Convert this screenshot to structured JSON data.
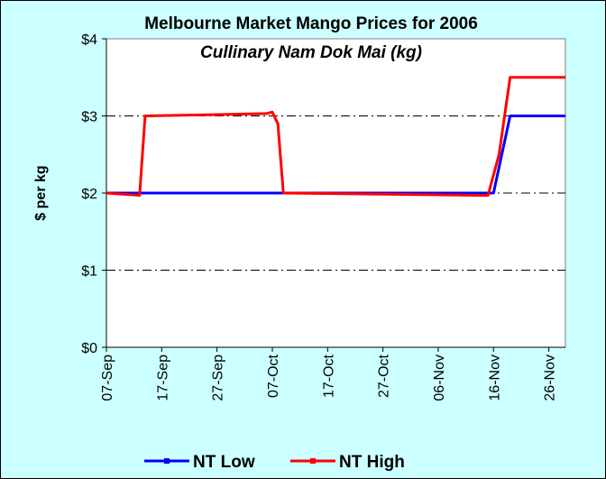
{
  "chart_data": {
    "type": "line",
    "title": "Melbourne Market Mango Prices for 2006",
    "subtitle": "Cullinary Nam Dok Mai (kg)",
    "y_label": "$ per kg",
    "xlim": [
      "07-Sep",
      "29-Nov"
    ],
    "xticks": [
      "07-Sep",
      "17-Sep",
      "27-Sep",
      "07-Oct",
      "17-Oct",
      "27-Oct",
      "06-Nov",
      "16-Nov",
      "26-Nov"
    ],
    "ylim": [
      0,
      4
    ],
    "yticks": [
      {
        "value": 0,
        "label": "$0"
      },
      {
        "value": 1,
        "label": "$1"
      },
      {
        "value": 2,
        "label": "$2"
      },
      {
        "value": 3,
        "label": "$3"
      },
      {
        "value": 4,
        "label": "$4"
      }
    ],
    "grid": true,
    "legend": "bottom",
    "series": [
      {
        "name": "NT Low",
        "color": "#0000ff",
        "x": [
          "07-Sep",
          "16-Nov",
          "19-Nov",
          "29-Nov"
        ],
        "values": [
          2,
          2,
          3,
          3
        ]
      },
      {
        "name": "NT High",
        "color": "#ff0000",
        "x": [
          "07-Sep",
          "13-Sep",
          "14-Sep",
          "06-Oct",
          "07-Oct",
          "08-Oct",
          "09-Oct",
          "15-Nov",
          "17-Nov",
          "19-Nov",
          "29-Nov"
        ],
        "values": [
          2,
          1.97,
          3,
          3.03,
          3.05,
          2.9,
          2,
          1.97,
          2.5,
          3.5,
          3.5
        ]
      }
    ]
  }
}
